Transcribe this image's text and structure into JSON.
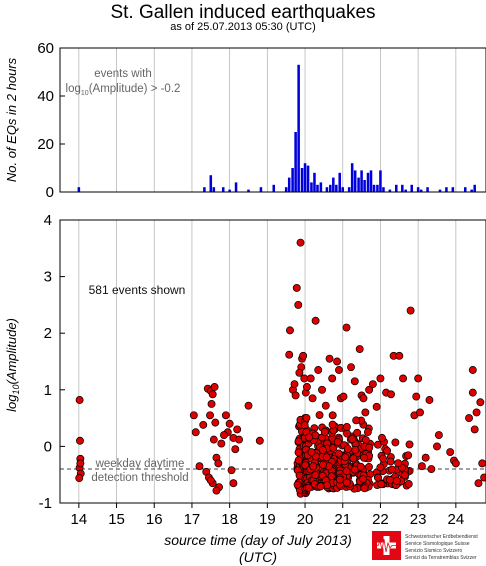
{
  "title": "St. Gallen induced earthquakes",
  "subtitle": "as of 25.07.2013 05:30 (UTC)",
  "logo": {
    "lines": [
      "Schweizerischer Erdbebendienst",
      "Service Sismologique Suisse",
      "Servizio Sismico Svizzero",
      "Servizi da Terratremblas Svizzer"
    ],
    "accent_color": "#e30613"
  },
  "chart_data": [
    {
      "type": "bar",
      "ylabel": "No. of EQs in 2 hours",
      "xlim": [
        13.5,
        24.8
      ],
      "ylim": [
        0,
        60
      ],
      "yticks": [
        0,
        20,
        40,
        60
      ],
      "grid": true,
      "bar_color": "#0000dd",
      "bin_width_days": 0.0833,
      "annotation": {
        "line1": "events with",
        "line2_prefix": "log",
        "line2_sub": "10",
        "line2_suffix": "(Amplitude) > -0.2"
      },
      "x": [
        14.0,
        17.33,
        17.5,
        17.58,
        17.83,
        18.0,
        18.17,
        18.5,
        18.83,
        19.17,
        19.5,
        19.58,
        19.67,
        19.75,
        19.83,
        19.92,
        20.0,
        20.08,
        20.17,
        20.25,
        20.33,
        20.42,
        20.58,
        20.67,
        20.75,
        20.83,
        20.92,
        21.0,
        21.17,
        21.25,
        21.33,
        21.42,
        21.5,
        21.58,
        21.67,
        21.75,
        21.83,
        21.92,
        22.0,
        22.08,
        22.25,
        22.42,
        22.58,
        22.67,
        22.83,
        23.0,
        23.08,
        23.25,
        23.58,
        23.75,
        23.92,
        24.25,
        24.42,
        24.5
      ],
      "values": [
        2,
        2,
        7,
        2,
        2,
        1,
        4,
        1,
        2,
        3,
        2,
        6,
        10,
        25,
        53,
        10,
        12,
        11,
        4,
        8,
        3,
        4,
        2,
        3,
        6,
        3,
        8,
        2,
        2,
        12,
        9,
        6,
        9,
        5,
        8,
        9,
        3,
        3,
        9,
        2,
        1,
        3,
        3,
        1,
        3,
        2,
        1,
        2,
        1,
        2,
        2,
        2,
        1,
        3
      ]
    },
    {
      "type": "scatter",
      "ylabel_prefix": "log",
      "ylabel_sub": "10",
      "ylabel_suffix": "(Amplitude)",
      "xlabel": "source time (day of July 2013)",
      "xlabel2": "(UTC)",
      "xlim": [
        13.5,
        24.8
      ],
      "ylim": [
        -1,
        4
      ],
      "xticks": [
        14,
        15,
        16,
        17,
        18,
        19,
        20,
        21,
        22,
        23,
        24
      ],
      "yticks": [
        -1,
        0,
        1,
        2,
        3,
        4
      ],
      "grid": true,
      "marker_color": "#dd0000",
      "annotation": "581 events shown",
      "threshold": {
        "y": -0.4,
        "line1": "weekday daytime",
        "line2": "detection threshold"
      },
      "points": [
        [
          14.02,
          0.82
        ],
        [
          14.03,
          0.1
        ],
        [
          14.04,
          -0.22
        ],
        [
          14.02,
          -0.38
        ],
        [
          14.05,
          -0.48
        ],
        [
          14.01,
          -0.56
        ],
        [
          14.04,
          -0.3
        ],
        [
          17.05,
          0.55
        ],
        [
          17.1,
          0.25
        ],
        [
          17.2,
          -0.35
        ],
        [
          17.3,
          0.38
        ],
        [
          17.42,
          1.02
        ],
        [
          17.5,
          0.98
        ],
        [
          17.52,
          0.75
        ],
        [
          17.55,
          0.92
        ],
        [
          17.6,
          1.05
        ],
        [
          17.48,
          0.55
        ],
        [
          17.62,
          0.42
        ],
        [
          17.38,
          -0.45
        ],
        [
          17.45,
          -0.55
        ],
        [
          17.55,
          -0.65
        ],
        [
          17.58,
          0.12
        ],
        [
          17.65,
          -0.2
        ],
        [
          17.7,
          -0.3
        ],
        [
          17.72,
          -0.72
        ],
        [
          17.78,
          0.05
        ],
        [
          17.65,
          -0.78
        ],
        [
          17.5,
          -0.6
        ],
        [
          17.9,
          0.55
        ],
        [
          17.95,
          0.25
        ],
        [
          18.0,
          0.4
        ],
        [
          18.05,
          -0.42
        ],
        [
          18.1,
          0.15
        ],
        [
          18.15,
          -0.05
        ],
        [
          18.2,
          0.3
        ],
        [
          18.1,
          -0.65
        ],
        [
          18.25,
          0.12
        ],
        [
          17.85,
          0.2
        ],
        [
          18.5,
          0.72
        ],
        [
          18.8,
          0.1
        ],
        [
          19.58,
          1.62
        ],
        [
          19.6,
          2.05
        ],
        [
          19.68,
          1.0
        ],
        [
          19.72,
          1.1
        ],
        [
          19.78,
          2.8
        ],
        [
          19.82,
          2.5
        ],
        [
          19.88,
          3.6
        ],
        [
          19.9,
          1.4
        ],
        [
          19.92,
          1.55
        ],
        [
          19.95,
          1.6
        ],
        [
          19.98,
          1.2
        ],
        [
          20.02,
          0.95
        ],
        [
          20.05,
          1.05
        ],
        [
          19.85,
          1.3
        ],
        [
          19.75,
          0.9
        ],
        [
          20.15,
          1.2
        ],
        [
          20.2,
          0.85
        ],
        [
          20.28,
          2.22
        ],
        [
          20.35,
          1.35
        ],
        [
          20.45,
          1.0
        ],
        [
          20.55,
          0.72
        ],
        [
          20.65,
          1.55
        ],
        [
          20.72,
          1.2
        ],
        [
          20.85,
          1.5
        ],
        [
          20.9,
          1.35
        ],
        [
          20.95,
          0.85
        ],
        [
          21.02,
          0.88
        ],
        [
          21.1,
          2.1
        ],
        [
          21.22,
          1.4
        ],
        [
          21.32,
          1.15
        ],
        [
          21.45,
          1.72
        ],
        [
          21.5,
          0.9
        ],
        [
          21.55,
          0.85
        ],
        [
          21.6,
          0.6
        ],
        [
          21.7,
          1.0
        ],
        [
          21.8,
          1.1
        ],
        [
          21.9,
          0.7
        ],
        [
          22.0,
          1.2
        ],
        [
          22.15,
          0.95
        ],
        [
          22.28,
          0.92
        ],
        [
          22.35,
          1.6
        ],
        [
          22.5,
          1.6
        ],
        [
          22.6,
          1.2
        ],
        [
          22.8,
          2.4
        ],
        [
          22.9,
          0.55
        ],
        [
          23.0,
          1.2
        ],
        [
          23.3,
          0.82
        ],
        [
          23.55,
          0.2
        ],
        [
          24.35,
          0.5
        ],
        [
          24.45,
          1.35
        ],
        [
          24.5,
          0.3
        ],
        [
          24.55,
          0.6
        ],
        [
          24.65,
          0.78
        ],
        [
          24.7,
          -0.3
        ],
        [
          24.75,
          -0.55
        ],
        [
          24.6,
          -0.65
        ],
        [
          24.45,
          0.95
        ],
        [
          23.05,
          0.6
        ],
        [
          22.95,
          0.88
        ],
        [
          23.5,
          0.0
        ],
        [
          23.85,
          -0.1
        ],
        [
          23.95,
          -0.25
        ],
        [
          24.0,
          -0.3
        ],
        [
          23.1,
          -0.35
        ],
        [
          23.2,
          -0.2
        ],
        [
          23.35,
          -0.4
        ]
      ],
      "dense_clusters": [
        {
          "x_center": 19.92,
          "x_spread": 0.12,
          "y_min": -0.85,
          "y_max": 0.85,
          "count": 110
        },
        {
          "x_center": 20.4,
          "x_spread": 0.4,
          "y_min": -0.75,
          "y_max": 0.6,
          "count": 150
        },
        {
          "x_center": 21.3,
          "x_spread": 0.45,
          "y_min": -0.75,
          "y_max": 0.6,
          "count": 130
        },
        {
          "x_center": 22.35,
          "x_spread": 0.45,
          "y_min": -0.7,
          "y_max": 0.3,
          "count": 55
        }
      ]
    }
  ]
}
